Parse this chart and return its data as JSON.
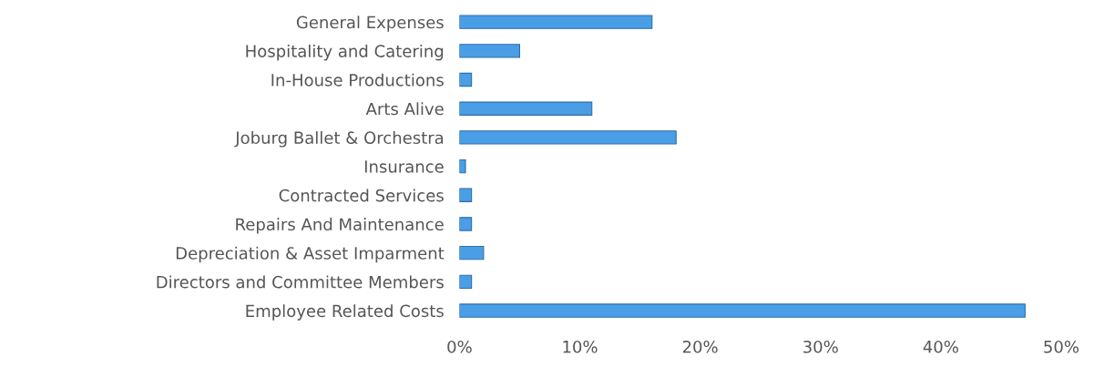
{
  "chart_data": {
    "type": "bar",
    "orientation": "horizontal",
    "categories": [
      "General Expenses",
      "Hospitality and Catering",
      "In-House Productions",
      "Arts Alive",
      "Joburg Ballet & Orchestra",
      "Insurance",
      "Contracted Services",
      "Repairs And Maintenance",
      "Depreciation & Asset Imparment",
      "Directors and Committee Members",
      "Employee Related Costs"
    ],
    "values": [
      16,
      5,
      1,
      11,
      18,
      0.5,
      1,
      1,
      2,
      1,
      47
    ],
    "color": "#4a9ee6",
    "xlim": [
      0,
      50
    ],
    "xticks": [
      {
        "value": 0,
        "label": "0%"
      },
      {
        "value": 10,
        "label": "10%"
      },
      {
        "value": 20,
        "label": "20%"
      },
      {
        "value": 30,
        "label": "30%"
      },
      {
        "value": 40,
        "label": "40%"
      },
      {
        "value": 50,
        "label": "50%"
      }
    ],
    "grid": false
  }
}
